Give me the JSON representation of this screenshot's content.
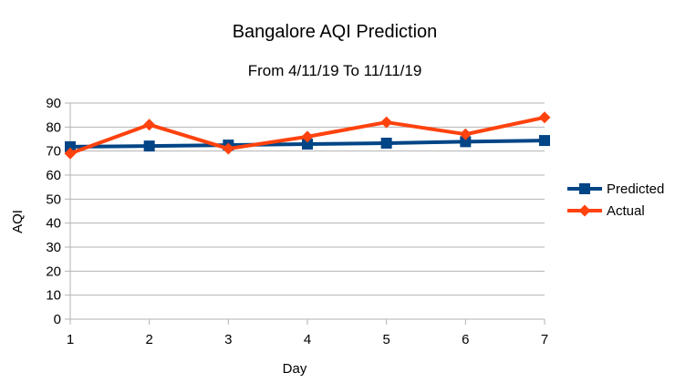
{
  "chart_data": {
    "type": "line",
    "title": "Bangalore AQI Prediction",
    "subtitle": "From 4/11/19 To 11/11/19",
    "xlabel": "Day",
    "ylabel": "AQI",
    "x": [
      1,
      2,
      3,
      4,
      5,
      6,
      7
    ],
    "x_tick_labels": [
      "1",
      "2",
      "3",
      "4",
      "5",
      "6",
      "7"
    ],
    "y_tick_labels": [
      "0",
      "10",
      "20",
      "30",
      "40",
      "50",
      "60",
      "70",
      "80",
      "90"
    ],
    "ylim": [
      0,
      90
    ],
    "grid": true,
    "legend_position": "right",
    "series": [
      {
        "name": "Predicted",
        "color": "#004586",
        "marker": "square",
        "values": [
          71.8,
          72.1,
          72.5,
          72.9,
          73.3,
          73.9,
          74.4
        ]
      },
      {
        "name": "Actual",
        "color": "#ff420e",
        "marker": "diamond",
        "values": [
          69,
          81,
          71,
          76,
          82,
          77,
          84
        ]
      }
    ]
  }
}
